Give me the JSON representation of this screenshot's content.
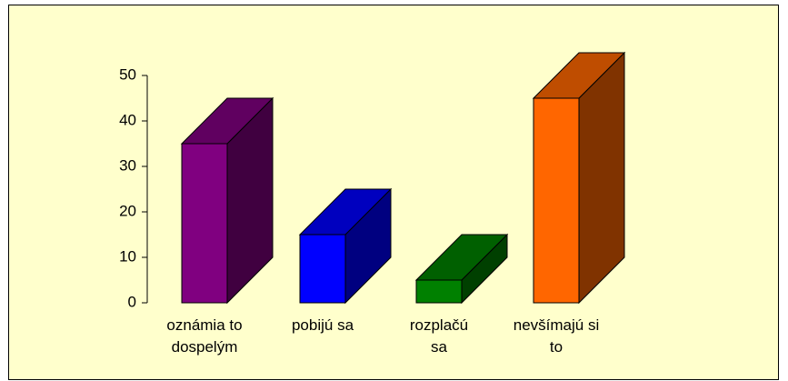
{
  "chart_data": {
    "type": "bar3d",
    "categories": [
      "oznámia to dospelým",
      "pobijú sa",
      "rozplačú sa",
      "nevšímajú si to"
    ],
    "values": [
      35,
      15,
      5,
      45
    ],
    "colors": [
      "#800080",
      "#0000ff",
      "#008000",
      "#ff6600"
    ],
    "ylim": [
      0,
      50
    ],
    "yticks": [
      0,
      10,
      20,
      30,
      40,
      50
    ]
  }
}
